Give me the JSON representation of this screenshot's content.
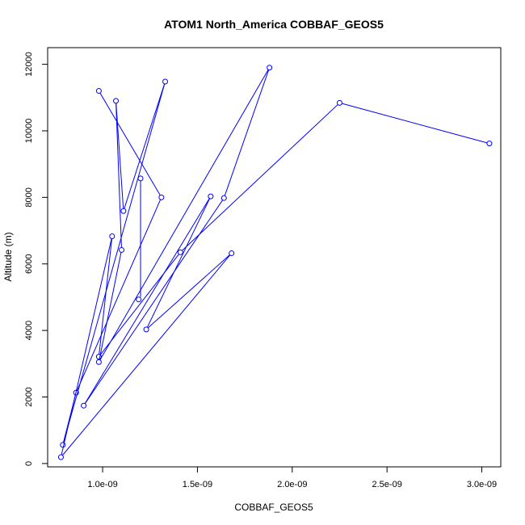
{
  "chart_data": {
    "type": "line",
    "title": "ATOM1 North_America COBBAF_GEOS5",
    "xlabel": "COBBAF_GEOS5",
    "ylabel": "Altitude (m)",
    "xlim": [
      7.1e-10,
      3.1e-09
    ],
    "ylim": [
      -100,
      12500
    ],
    "x_ticks": [
      1e-09,
      1.5e-09,
      2e-09,
      2.5e-09,
      3e-09
    ],
    "x_tick_labels": [
      "1.0e-09",
      "1.5e-09",
      "2.0e-09",
      "2.5e-09",
      "3.0e-09"
    ],
    "y_ticks": [
      0,
      2000,
      4000,
      6000,
      8000,
      10000,
      12000
    ],
    "y_tick_labels": [
      "0",
      "2000",
      "4000",
      "6000",
      "8000",
      "10000",
      "12000"
    ],
    "grid": false,
    "series": [
      {
        "color": "#0000ff",
        "marker": "open-circle",
        "points": [
          {
            "x": 9.8e-10,
            "y": 11200
          },
          {
            "x": 1.31e-09,
            "y": 8000
          },
          {
            "x": 8.6e-10,
            "y": 2130
          },
          {
            "x": 7.9e-10,
            "y": 560
          },
          {
            "x": 1.33e-09,
            "y": 11480
          },
          {
            "x": 1.11e-09,
            "y": 7590
          },
          {
            "x": 1.07e-09,
            "y": 10900
          },
          {
            "x": 1.1e-09,
            "y": 6420
          },
          {
            "x": 9.8e-10,
            "y": 3050
          },
          {
            "x": 1.88e-09,
            "y": 11900
          },
          {
            "x": 1.64e-09,
            "y": 7980
          },
          {
            "x": 9e-10,
            "y": 1740
          },
          {
            "x": 1.57e-09,
            "y": 8030
          },
          {
            "x": 1.23e-09,
            "y": 4030
          },
          {
            "x": 1.68e-09,
            "y": 6320
          },
          {
            "x": 7.8e-10,
            "y": 190
          },
          {
            "x": 1.05e-09,
            "y": 6830
          },
          {
            "x": 9.8e-10,
            "y": 3210
          },
          {
            "x": 1.41e-09,
            "y": 6350
          },
          {
            "x": 2.25e-09,
            "y": 10840
          },
          {
            "x": 3.04e-09,
            "y": 9620
          }
        ],
        "extra_segments": [
          {
            "from": {
              "x": 1.2e-09,
              "y": 8570
            },
            "to": {
              "x": 1.2e-09,
              "y": 4930
            }
          }
        ],
        "extra_points": [
          {
            "x": 1.2e-09,
            "y": 8570
          },
          {
            "x": 1.19e-09,
            "y": 4930
          }
        ]
      }
    ]
  }
}
